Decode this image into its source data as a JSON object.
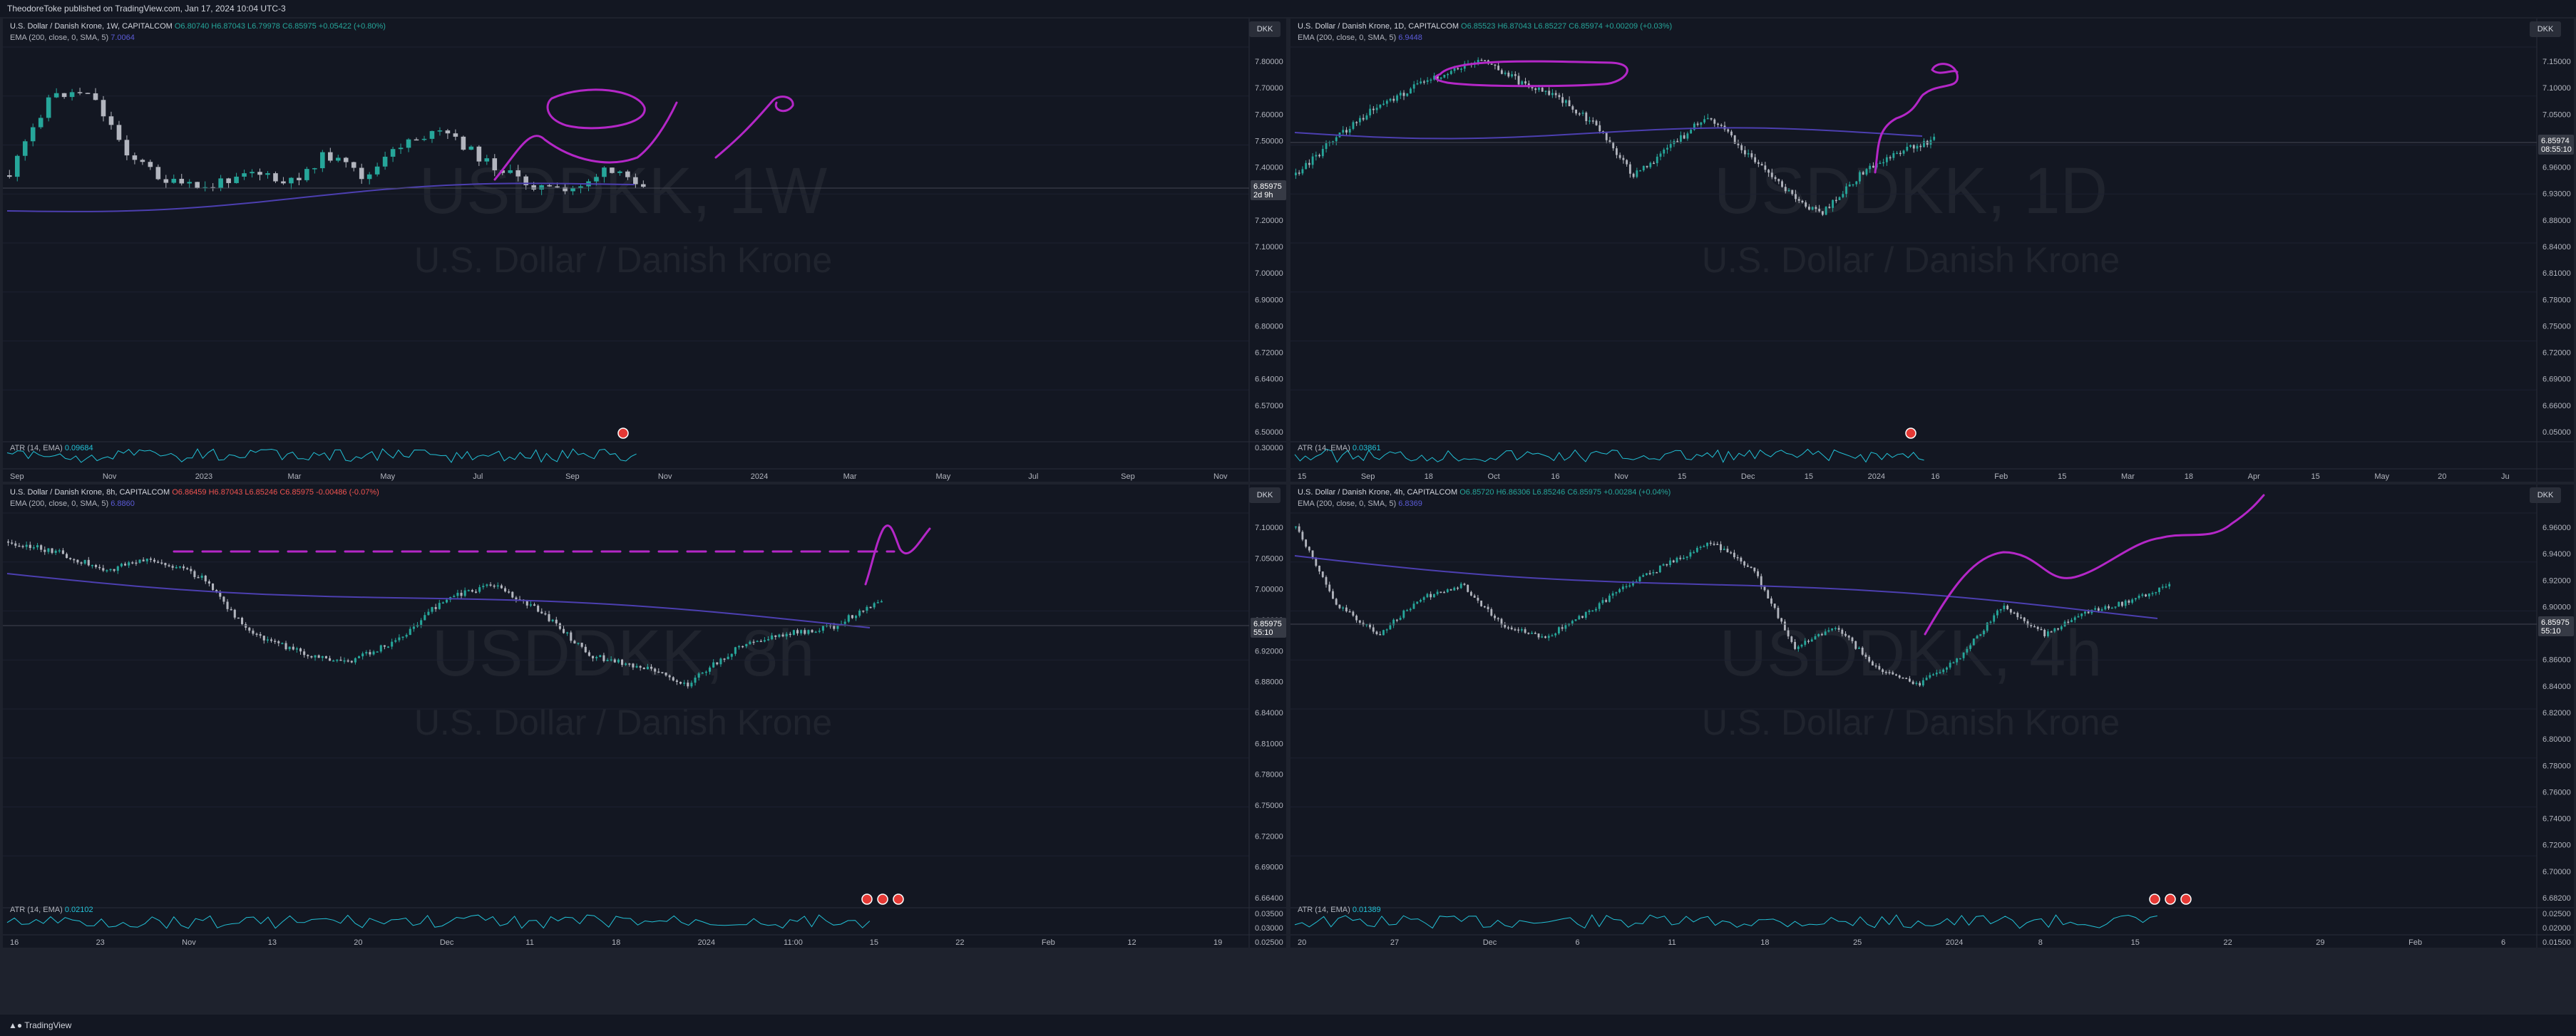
{
  "topbar": {
    "text": "TheodoreToke published on TradingView.com, Jan 17, 2024 10:04 UTC-3"
  },
  "footer": {
    "brand": "TradingView"
  },
  "colors": {
    "bull": "#26a69a",
    "bear": "#b2b5be",
    "ema": "#4c3fb0",
    "atr": "#22c1d6",
    "drawing": "#b427c7",
    "background": "#131722"
  },
  "panels": [
    {
      "id": "p1",
      "header": {
        "title": "U.S. Dollar / Danish Krone, 1W, CAPITALCOM",
        "o": "O6.80740",
        "h": "H6.87043",
        "l": "L6.79978",
        "c": "C6.85975",
        "chg": "+0.05422 (+0.80%)"
      },
      "ema_label": "EMA (200, close, 0, SMA, 5)",
      "ema_value": "7.0064",
      "atr_label": "ATR (14, EMA)",
      "atr_value": "0.09684",
      "currency": "DKK",
      "watermark": {
        "symbol": "USDDKK, 1W",
        "name": "U.S. Dollar / Danish Krone"
      },
      "price_label": {
        "value": "6.85975",
        "countdown": "2d 9h"
      },
      "y_ticks": [
        "7.80000",
        "7.70000",
        "7.60000",
        "7.50000",
        "7.40000",
        "7.30000",
        "7.20000",
        "7.10000",
        "7.00000",
        "6.90000",
        "6.80000",
        "6.72000",
        "6.64000",
        "6.57000",
        "6.50000"
      ],
      "atr_ticks": [
        "0.30000"
      ],
      "x_ticks": [
        "Sep",
        "Nov",
        "2023",
        "Mar",
        "May",
        "Jul",
        "Sep",
        "Nov",
        "2024",
        "Mar",
        "May",
        "Jul",
        "Sep",
        "Nov"
      ]
    },
    {
      "id": "p2",
      "header": {
        "title": "U.S. Dollar / Danish Krone, 1D, CAPITALCOM",
        "o": "O6.85523",
        "h": "H6.87043",
        "l": "L6.85227",
        "c": "C6.85974",
        "chg": "+0.00209 (+0.03%)"
      },
      "ema_label": "EMA (200, close, 0, SMA, 5)",
      "ema_value": "6.9448",
      "atr_label": "ATR (14, EMA)",
      "atr_value": "0.03861",
      "currency": "DKK",
      "watermark": {
        "symbol": "USDDKK, 1D",
        "name": "U.S. Dollar / Danish Krone"
      },
      "price_label": {
        "value": "6.85974",
        "countdown": "08:55:10"
      },
      "y_ticks": [
        "7.15000",
        "7.10000",
        "7.05000",
        "7.00000",
        "6.96000",
        "6.93000",
        "6.88000",
        "6.84000",
        "6.81000",
        "6.78000",
        "6.75000",
        "6.72000",
        "6.69000",
        "6.66000",
        "0.05000"
      ],
      "atr_ticks": [],
      "x_ticks": [
        "15",
        "Sep",
        "18",
        "Oct",
        "16",
        "Nov",
        "15",
        "Dec",
        "15",
        "2024",
        "16",
        "Feb",
        "15",
        "Mar",
        "18",
        "Apr",
        "15",
        "May",
        "20",
        "Ju"
      ]
    },
    {
      "id": "p3",
      "header": {
        "title": "U.S. Dollar / Danish Krone, 8h, CAPITALCOM",
        "o": "O6.86459",
        "h": "H6.87043",
        "l": "L6.85246",
        "c": "C6.85975",
        "chg": "-0.00486 (-0.07%)"
      },
      "ema_label": "EMA (200, close, 0, SMA, 5)",
      "ema_value": "6.8860",
      "atr_label": "ATR (14, EMA)",
      "atr_value": "0.02102",
      "currency": "DKK",
      "watermark": {
        "symbol": "USDDKK, 8h",
        "name": "U.S. Dollar / Danish Krone"
      },
      "price_label": {
        "value": "6.85975",
        "countdown": "55:10"
      },
      "y_ticks": [
        "7.10000",
        "7.05000",
        "7.00000",
        "6.96000",
        "6.92000",
        "6.88000",
        "6.84000",
        "6.81000",
        "6.78000",
        "6.75000",
        "6.72000",
        "6.69000",
        "6.66400"
      ],
      "atr_ticks": [
        "0.03500",
        "0.03000",
        "0.02500",
        "0.02000"
      ],
      "x_ticks": [
        "16",
        "23",
        "Nov",
        "13",
        "20",
        "Dec",
        "11",
        "18",
        "2024",
        "11:00",
        "15",
        "22",
        "Feb",
        "12",
        "19"
      ]
    },
    {
      "id": "p4",
      "header": {
        "title": "U.S. Dollar / Danish Krone, 4h, CAPITALCOM",
        "o": "O6.85720",
        "h": "H6.86306",
        "l": "L6.85246",
        "c": "C6.85975",
        "chg": "+0.00284 (+0.04%)"
      },
      "ema_label": "EMA (200, close, 0, SMA, 5)",
      "ema_value": "6.8369",
      "atr_label": "ATR (14, EMA)",
      "atr_value": "0.01389",
      "currency": "DKK",
      "watermark": {
        "symbol": "USDDKK, 4h",
        "name": "U.S. Dollar / Danish Krone"
      },
      "price_label": {
        "value": "6.85975",
        "countdown": "55:10"
      },
      "y_ticks": [
        "6.96000",
        "6.94000",
        "6.92000",
        "6.90000",
        "6.88000",
        "6.86000",
        "6.84000",
        "6.82000",
        "6.80000",
        "6.78000",
        "6.76000",
        "6.74000",
        "6.72000",
        "6.70000",
        "6.68200"
      ],
      "atr_ticks": [
        "0.02500",
        "0.02000",
        "0.01500"
      ],
      "x_ticks": [
        "20",
        "27",
        "Dec",
        "6",
        "11",
        "18",
        "25",
        "2024",
        "8",
        "15",
        "22",
        "29",
        "Feb",
        "6"
      ]
    }
  ],
  "chart_data": [
    {
      "type": "candlestick",
      "title": "U.S. Dollar / Danish Krone, 1W, CAPITALCOM",
      "series": [
        {
          "name": "USDDKK",
          "last_close": 6.85975
        },
        {
          "name": "EMA (200, close, 0, SMA, 5)",
          "last": 7.0064
        },
        {
          "name": "ATR (14, EMA)",
          "last": 0.09684
        }
      ],
      "ylim": [
        6.5,
        7.8
      ]
    },
    {
      "type": "candlestick",
      "title": "U.S. Dollar / Danish Krone, 1D, CAPITALCOM",
      "series": [
        {
          "name": "USDDKK",
          "last_close": 6.85974
        },
        {
          "name": "EMA (200, close, 0, SMA, 5)",
          "last": 6.9448
        },
        {
          "name": "ATR (14, EMA)",
          "last": 0.03861
        }
      ],
      "ylim": [
        6.66,
        7.15
      ]
    },
    {
      "type": "candlestick",
      "title": "U.S. Dollar / Danish Krone, 8h, CAPITALCOM",
      "series": [
        {
          "name": "USDDKK",
          "last_close": 6.85975
        },
        {
          "name": "EMA (200, close, 0, SMA, 5)",
          "last": 6.886
        },
        {
          "name": "ATR (14, EMA)",
          "last": 0.02102
        }
      ],
      "ylim": [
        6.664,
        7.1
      ]
    },
    {
      "type": "candlestick",
      "title": "U.S. Dollar / Danish Krone, 4h, CAPITALCOM",
      "series": [
        {
          "name": "USDDKK",
          "last_close": 6.85975
        },
        {
          "name": "EMA (200, close, 0, SMA, 5)",
          "last": 6.8369
        },
        {
          "name": "ATR (14, EMA)",
          "last": 0.01389
        }
      ],
      "ylim": [
        6.682,
        6.96
      ]
    }
  ]
}
